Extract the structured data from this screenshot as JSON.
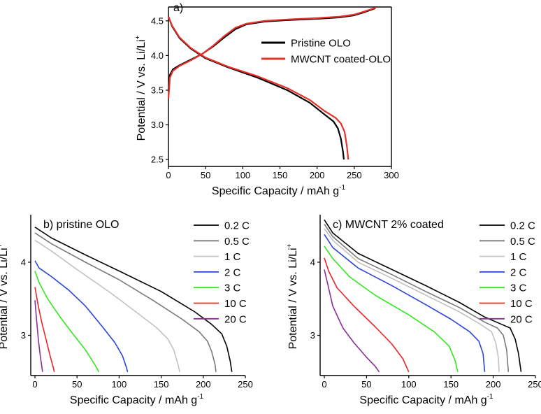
{
  "chart_data": [
    {
      "id": "a",
      "type": "line",
      "panel_label": "a)",
      "xlabel": "Specific Capacity / mAh g",
      "xlabel_sup": "-1",
      "ylabel": "Potential / V vs. Li/Li",
      "ylabel_sup": "+",
      "xlim": [
        0,
        300
      ],
      "ylim": [
        2.4,
        4.7
      ],
      "xticks": [
        0,
        50,
        100,
        150,
        200,
        250,
        300
      ],
      "yticks": [
        2.5,
        3.0,
        3.5,
        4.0,
        4.5
      ],
      "ytick_labels": [
        "2.5",
        "3.0",
        "3.5",
        "4.0",
        "4.5"
      ],
      "legend_position": "upper-right",
      "series": [
        {
          "name": "Pristine OLO",
          "color": "#000000",
          "charge": [
            [
              0,
              3.48
            ],
            [
              2,
              3.72
            ],
            [
              6,
              3.8
            ],
            [
              15,
              3.86
            ],
            [
              30,
              3.94
            ],
            [
              45,
              4.02
            ],
            [
              60,
              4.13
            ],
            [
              75,
              4.26
            ],
            [
              90,
              4.38
            ],
            [
              105,
              4.45
            ],
            [
              130,
              4.49
            ],
            [
              160,
              4.51
            ],
            [
              200,
              4.53
            ],
            [
              230,
              4.55
            ],
            [
              250,
              4.58
            ],
            [
              265,
              4.63
            ],
            [
              278,
              4.68
            ]
          ],
          "discharge": [
            [
              0,
              4.56
            ],
            [
              5,
              4.42
            ],
            [
              15,
              4.25
            ],
            [
              30,
              4.1
            ],
            [
              50,
              3.96
            ],
            [
              80,
              3.83
            ],
            [
              120,
              3.68
            ],
            [
              160,
              3.5
            ],
            [
              190,
              3.32
            ],
            [
              210,
              3.15
            ],
            [
              222,
              3.05
            ],
            [
              228,
              2.95
            ],
            [
              232,
              2.8
            ],
            [
              235,
              2.6
            ],
            [
              236,
              2.5
            ]
          ]
        },
        {
          "name": "MWCNT coated-OLO",
          "color": "#e8302a",
          "charge": [
            [
              0,
              3.38
            ],
            [
              2,
              3.68
            ],
            [
              6,
              3.78
            ],
            [
              15,
              3.85
            ],
            [
              30,
              3.93
            ],
            [
              45,
              4.02
            ],
            [
              60,
              4.14
            ],
            [
              75,
              4.28
            ],
            [
              90,
              4.4
            ],
            [
              105,
              4.46
            ],
            [
              130,
              4.5
            ],
            [
              160,
              4.52
            ],
            [
              200,
              4.54
            ],
            [
              230,
              4.56
            ],
            [
              250,
              4.59
            ],
            [
              265,
              4.64
            ],
            [
              279,
              4.69
            ]
          ],
          "discharge": [
            [
              0,
              4.56
            ],
            [
              5,
              4.43
            ],
            [
              15,
              4.26
            ],
            [
              30,
              4.11
            ],
            [
              50,
              3.97
            ],
            [
              80,
              3.84
            ],
            [
              120,
              3.7
            ],
            [
              160,
              3.53
            ],
            [
              190,
              3.36
            ],
            [
              210,
              3.2
            ],
            [
              225,
              3.1
            ],
            [
              232,
              3.02
            ],
            [
              237,
              2.9
            ],
            [
              240,
              2.7
            ],
            [
              242,
              2.5
            ]
          ]
        }
      ]
    },
    {
      "id": "b",
      "type": "line",
      "title": "b) pristine OLO",
      "xlabel": "Specific Capacity / mAh g",
      "xlabel_sup": "-1",
      "ylabel": "Potential / V vs. Li/Li",
      "ylabel_sup": "+",
      "xlim": [
        -5,
        250
      ],
      "ylim": [
        2.45,
        4.65
      ],
      "xticks": [
        0,
        50,
        100,
        150,
        200,
        250
      ],
      "yticks": [
        3,
        4
      ],
      "ytick_labels": [
        "3",
        "4"
      ],
      "legend_position": "right",
      "series": [
        {
          "name": "0.2 C",
          "color": "#000000",
          "points": [
            [
              0,
              4.48
            ],
            [
              20,
              4.33
            ],
            [
              60,
              4.1
            ],
            [
              100,
              3.88
            ],
            [
              150,
              3.6
            ],
            [
              190,
              3.32
            ],
            [
              210,
              3.15
            ],
            [
              222,
              3.02
            ],
            [
              228,
              2.85
            ],
            [
              232,
              2.65
            ],
            [
              234,
              2.5
            ]
          ]
        },
        {
          "name": "0.5 C",
          "color": "#7a7a7a",
          "points": [
            [
              0,
              4.4
            ],
            [
              20,
              4.25
            ],
            [
              60,
              4.0
            ],
            [
              100,
              3.76
            ],
            [
              140,
              3.48
            ],
            [
              175,
              3.22
            ],
            [
              195,
              3.05
            ],
            [
              205,
              2.92
            ],
            [
              210,
              2.78
            ],
            [
              214,
              2.6
            ],
            [
              215,
              2.5
            ]
          ]
        },
        {
          "name": "1 C",
          "color": "#c2c2c2",
          "points": [
            [
              0,
              4.3
            ],
            [
              20,
              4.15
            ],
            [
              50,
              3.9
            ],
            [
              90,
              3.58
            ],
            [
              120,
              3.32
            ],
            [
              145,
              3.1
            ],
            [
              158,
              2.95
            ],
            [
              165,
              2.8
            ],
            [
              170,
              2.6
            ],
            [
              172,
              2.5
            ]
          ]
        },
        {
          "name": "2 C",
          "color": "#2a44d8",
          "points": [
            [
              0,
              4.02
            ],
            [
              5,
              3.92
            ],
            [
              20,
              3.8
            ],
            [
              40,
              3.62
            ],
            [
              60,
              3.4
            ],
            [
              80,
              3.12
            ],
            [
              95,
              2.9
            ],
            [
              104,
              2.72
            ],
            [
              109,
              2.55
            ],
            [
              110,
              2.5
            ]
          ]
        },
        {
          "name": "3 C",
          "color": "#33e81f",
          "points": [
            [
              0,
              3.88
            ],
            [
              5,
              3.72
            ],
            [
              15,
              3.5
            ],
            [
              30,
              3.25
            ],
            [
              45,
              3.02
            ],
            [
              60,
              2.8
            ],
            [
              70,
              2.62
            ],
            [
              76,
              2.5
            ]
          ]
        },
        {
          "name": "10 C",
          "color": "#e8262a",
          "points": [
            [
              0,
              3.66
            ],
            [
              4,
              3.4
            ],
            [
              8,
              3.18
            ],
            [
              13,
              2.95
            ],
            [
              18,
              2.72
            ],
            [
              22,
              2.55
            ],
            [
              23,
              2.5
            ]
          ]
        },
        {
          "name": "20 C",
          "color": "#8b2d9c",
          "points": [
            [
              0,
              3.48
            ],
            [
              2,
              3.2
            ],
            [
              4,
              2.95
            ],
            [
              6,
              2.75
            ],
            [
              8,
              2.58
            ],
            [
              9,
              2.5
            ]
          ]
        }
      ]
    },
    {
      "id": "c",
      "type": "line",
      "title": "c) MWCNT 2% coated",
      "xlabel": "Specific Capacity / mAh g",
      "xlabel_sup": "-1",
      "ylabel": "Potential / V vs. Li/Li",
      "ylabel_sup": "+",
      "xlim": [
        -5,
        250
      ],
      "ylim": [
        2.45,
        4.65
      ],
      "xticks": [
        0,
        50,
        100,
        150,
        200,
        250
      ],
      "yticks": [
        3,
        4
      ],
      "ytick_labels": [
        "3",
        "4"
      ],
      "legend_position": "right",
      "series": [
        {
          "name": "0.2 C",
          "color": "#000000",
          "points": [
            [
              0,
              4.58
            ],
            [
              10,
              4.4
            ],
            [
              40,
              4.12
            ],
            [
              80,
              3.9
            ],
            [
              120,
              3.68
            ],
            [
              160,
              3.45
            ],
            [
              190,
              3.25
            ],
            [
              210,
              3.15
            ],
            [
              220,
              3.1
            ],
            [
              226,
              2.95
            ],
            [
              230,
              2.75
            ],
            [
              233,
              2.5
            ]
          ]
        },
        {
          "name": "0.5 C",
          "color": "#7a7a7a",
          "points": [
            [
              0,
              4.52
            ],
            [
              10,
              4.35
            ],
            [
              40,
              4.05
            ],
            [
              80,
              3.83
            ],
            [
              120,
              3.6
            ],
            [
              160,
              3.38
            ],
            [
              190,
              3.18
            ],
            [
              205,
              3.1
            ],
            [
              212,
              3.0
            ],
            [
              216,
              2.8
            ],
            [
              218,
              2.5
            ]
          ]
        },
        {
          "name": "1 C",
          "color": "#c2c2c2",
          "points": [
            [
              0,
              4.46
            ],
            [
              10,
              4.3
            ],
            [
              40,
              4.0
            ],
            [
              80,
              3.78
            ],
            [
              120,
              3.55
            ],
            [
              160,
              3.32
            ],
            [
              185,
              3.15
            ],
            [
              198,
              3.05
            ],
            [
              203,
              2.9
            ],
            [
              206,
              2.7
            ],
            [
              207,
              2.5
            ]
          ]
        },
        {
          "name": "2 C",
          "color": "#2a44d8",
          "points": [
            [
              0,
              4.38
            ],
            [
              10,
              4.2
            ],
            [
              40,
              3.92
            ],
            [
              80,
              3.68
            ],
            [
              120,
              3.42
            ],
            [
              150,
              3.22
            ],
            [
              172,
              3.05
            ],
            [
              183,
              2.92
            ],
            [
              188,
              2.75
            ],
            [
              190,
              2.5
            ]
          ]
        },
        {
          "name": "3 C",
          "color": "#33e81f",
          "points": [
            [
              0,
              4.22
            ],
            [
              10,
              4.05
            ],
            [
              30,
              3.8
            ],
            [
              60,
              3.55
            ],
            [
              100,
              3.28
            ],
            [
              130,
              3.05
            ],
            [
              148,
              2.85
            ],
            [
              155,
              2.65
            ],
            [
              158,
              2.5
            ]
          ]
        },
        {
          "name": "10 C",
          "color": "#e8262a",
          "points": [
            [
              0,
              4.06
            ],
            [
              5,
              3.88
            ],
            [
              15,
              3.65
            ],
            [
              35,
              3.4
            ],
            [
              60,
              3.12
            ],
            [
              80,
              2.88
            ],
            [
              93,
              2.68
            ],
            [
              100,
              2.5
            ]
          ]
        },
        {
          "name": "20 C",
          "color": "#8b2d9c",
          "points": [
            [
              0,
              3.9
            ],
            [
              4,
              3.7
            ],
            [
              10,
              3.4
            ],
            [
              22,
              3.1
            ],
            [
              35,
              2.9
            ],
            [
              50,
              2.7
            ],
            [
              60,
              2.58
            ],
            [
              65,
              2.5
            ]
          ]
        }
      ]
    }
  ]
}
